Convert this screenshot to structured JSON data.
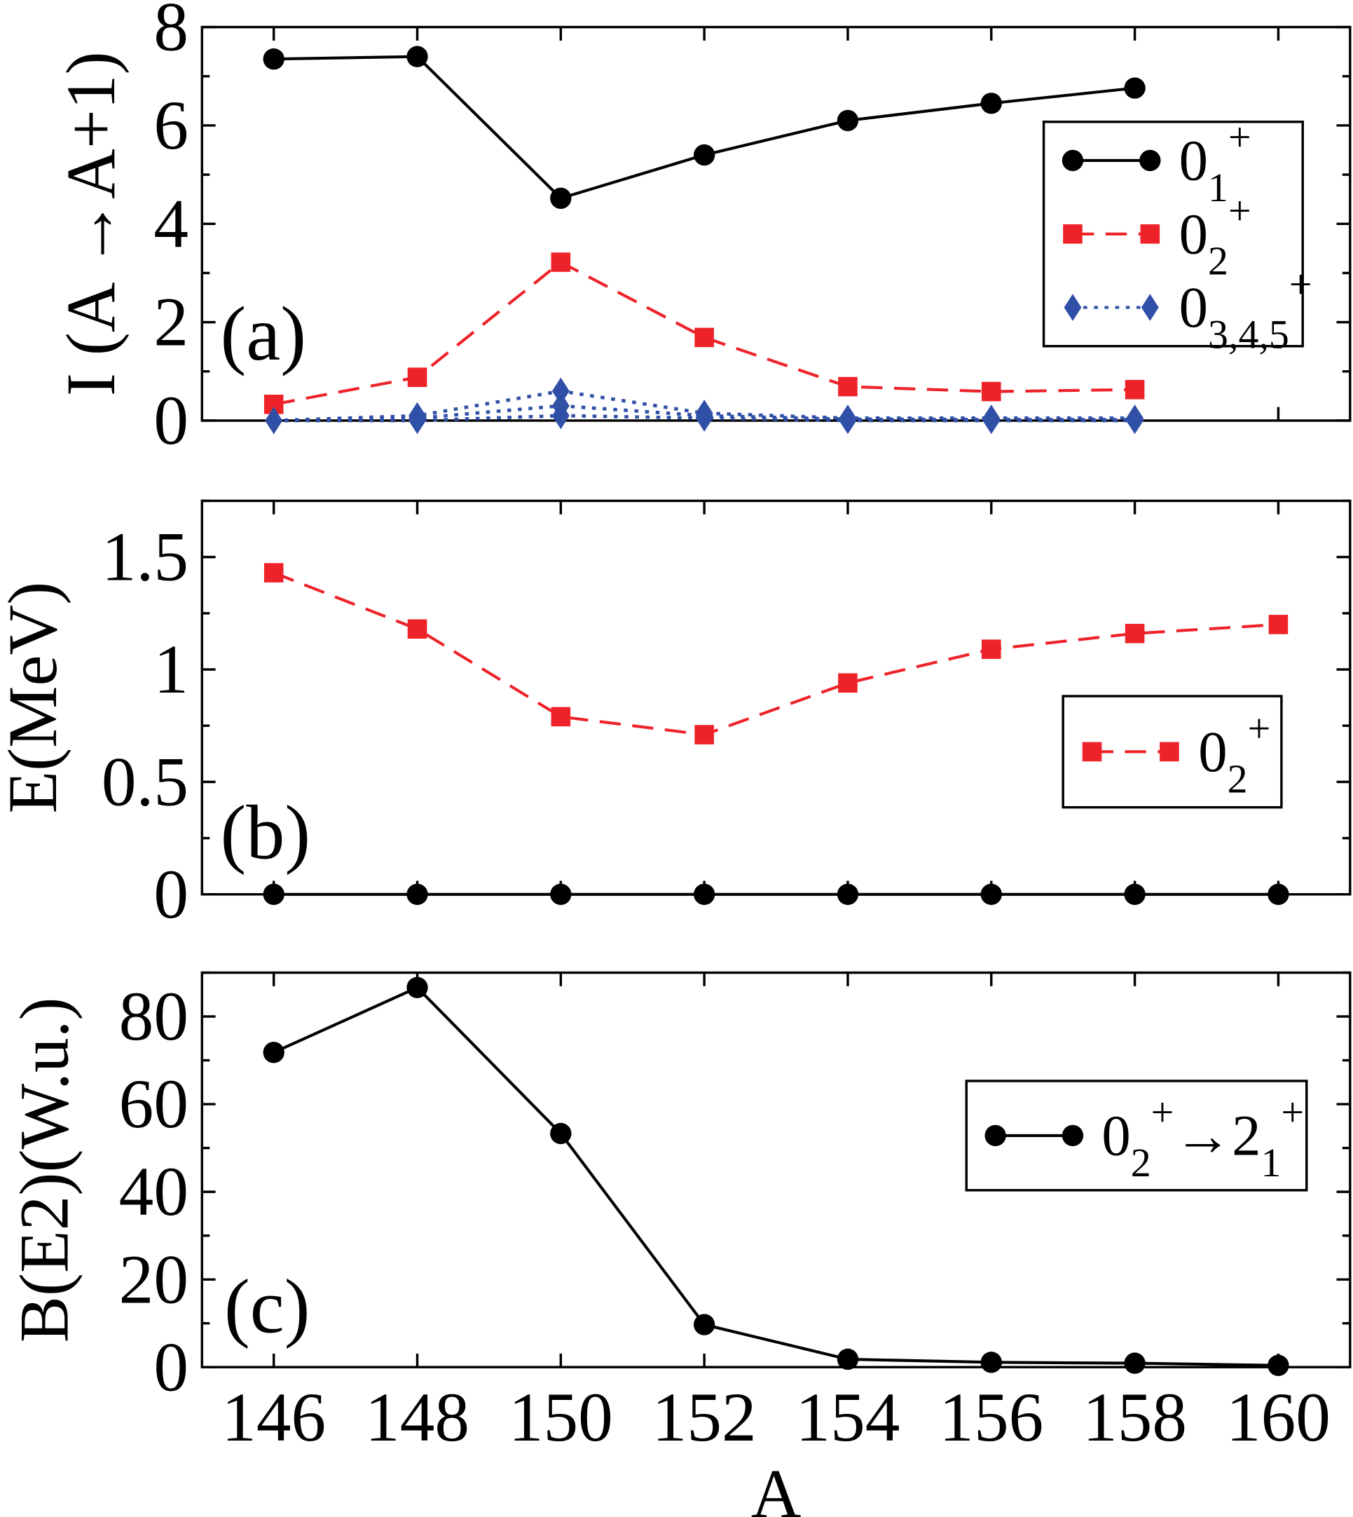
{
  "chart_data": [
    {
      "type": "line",
      "panel_label": "(a)",
      "ylabel": "I (A →A+1)",
      "xlim": [
        145,
        161
      ],
      "ylim": [
        0,
        8
      ],
      "yticks": [
        "0",
        "2",
        "4",
        "6",
        "8"
      ],
      "ytick_values": [
        0,
        2,
        4,
        6,
        8
      ],
      "legend": "right",
      "x": [
        146,
        148,
        150,
        152,
        154,
        156,
        158
      ],
      "series": [
        {
          "legend_base": "0",
          "legend_sub": "1",
          "legend_sup": "+",
          "color": "#000000",
          "marker": "circle",
          "dash": "solid",
          "values": [
            7.35,
            7.4,
            4.52,
            5.4,
            6.1,
            6.45,
            6.76
          ]
        },
        {
          "legend_base": "0",
          "legend_sub": "2",
          "legend_sup": "+",
          "color": "#ee2229",
          "marker": "square",
          "dash": "dashed",
          "values": [
            0.33,
            0.88,
            3.22,
            1.69,
            0.69,
            0.59,
            0.63
          ]
        },
        {
          "legend_base": "0",
          "legend_sub": "3,4,5",
          "legend_sup": "+",
          "color": "#3050a8",
          "marker": "diamond",
          "dash": "dotted",
          "values": [
            0,
            0.1,
            0.6,
            0.15,
            0.05,
            0.05,
            0.05
          ]
        },
        {
          "color": "#3050a8",
          "marker": "diamond",
          "dash": "dotted",
          "values": [
            0,
            0.05,
            0.3,
            0.1,
            0.03,
            0.02,
            0.02
          ]
        },
        {
          "color": "#3050a8",
          "marker": "diamond",
          "dash": "dotted",
          "values": [
            0,
            0,
            0.1,
            0.05,
            0,
            0,
            0
          ]
        }
      ]
    },
    {
      "type": "line",
      "panel_label": "(b)",
      "ylabel": "E(MeV)",
      "xlim": [
        145,
        161
      ],
      "ylim": [
        0,
        1.75
      ],
      "yticks": [
        "0",
        "0.5",
        "1",
        "1.5"
      ],
      "ytick_values": [
        0,
        0.5,
        1,
        1.5
      ],
      "legend": "right",
      "x": [
        146,
        148,
        150,
        152,
        154,
        156,
        158,
        160
      ],
      "series": [
        {
          "color": "#000000",
          "marker": "circle",
          "dash": "solid",
          "values": [
            0,
            0,
            0,
            0,
            0,
            0,
            0,
            0
          ]
        },
        {
          "legend_base": "0",
          "legend_sub": "2",
          "legend_sup": "+",
          "color": "#ee2229",
          "marker": "square",
          "dash": "dashed",
          "values": [
            1.43,
            1.18,
            0.79,
            0.71,
            0.94,
            1.09,
            1.16,
            1.2
          ]
        }
      ]
    },
    {
      "type": "line",
      "panel_label": "(c)",
      "ylabel": "B(E2)(W.u.)",
      "xlabel": "A",
      "xlim": [
        145,
        161
      ],
      "ylim": [
        0,
        90
      ],
      "yticks": [
        "0",
        "20",
        "40",
        "60",
        "80"
      ],
      "ytick_values": [
        0,
        20,
        40,
        60,
        80
      ],
      "xticks": [
        "146",
        "148",
        "150",
        "152",
        "154",
        "156",
        "158",
        "160"
      ],
      "xtick_values": [
        146,
        148,
        150,
        152,
        154,
        156,
        158,
        160
      ],
      "legend": "right",
      "x": [
        146,
        148,
        150,
        152,
        154,
        156,
        158,
        160
      ],
      "series": [
        {
          "legend_base": "0",
          "legend_sub": "2",
          "legend_sup": "+",
          "legend_arrow": "→",
          "legend_base2": "2",
          "legend_sub2": "1",
          "legend_sup2": "+",
          "color": "#000000",
          "marker": "circle",
          "dash": "solid",
          "values": [
            71.8,
            86.6,
            53.3,
            9.7,
            1.8,
            1.1,
            0.9,
            0.4
          ]
        }
      ]
    }
  ]
}
